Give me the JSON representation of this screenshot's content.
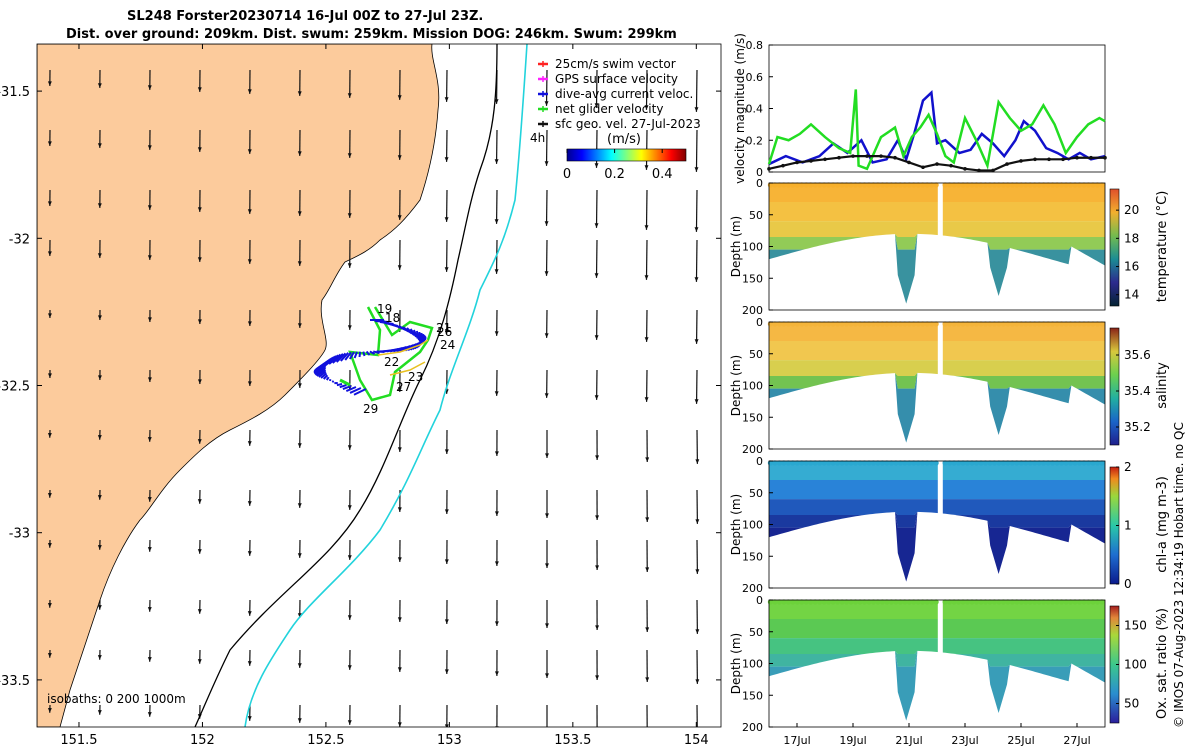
{
  "header": {
    "title_line1": "SL248 Forster20230714 16-Jul 00Z to 27-Jul 23Z.",
    "title_line2": "Dist. over ground: 209km. Dist. swum: 259km. Mission DOG: 246km. Swum: 299km"
  },
  "colors": {
    "land": "#FCCB9C",
    "ocean": "#FFFFFF",
    "isobath_200": "#000000",
    "isobath_1000": "#22D3DC",
    "vel_mag": "#1111CC",
    "net_vel": "#22DD22",
    "sfc_geo": "#111111"
  },
  "map": {
    "lon_ticks": [
      "151.5",
      "152",
      "152.5",
      "153",
      "153.5",
      "154"
    ],
    "lat_ticks": [
      "-31.5",
      "-32",
      "-32.5",
      "-33",
      "-33.5"
    ],
    "lon_range": [
      151.33,
      154.1
    ],
    "lat_range": [
      -33.66,
      -31.34
    ],
    "legend": [
      {
        "label": "25cm/s swim vector",
        "color": "#FF2222"
      },
      {
        "label": "GPS surface velocity",
        "color": "#FF22FF"
      },
      {
        "label": "dive-avg current veloc.",
        "color": "#1111DD"
      },
      {
        "label": "net glider velocity",
        "color": "#22DD22"
      },
      {
        "label": "sfc geo. vel. 27-Jul-2023",
        "color": "#111111"
      }
    ],
    "speed_colorbar": {
      "label": "(m/s)",
      "ticks": [
        "0",
        "0.2",
        "0.4"
      ],
      "range": [
        0,
        0.5
      ]
    },
    "time_label": "4h",
    "isobaths_label": "isobaths: 0   200   1000m",
    "day_labels": [
      "19",
      "18",
      "21",
      "26",
      "24",
      "22",
      "23",
      "27",
      "29"
    ]
  },
  "chart_data": [
    {
      "type": "line",
      "title": "",
      "xlabel": "",
      "ylabel": "velocity magnitude (m/s)",
      "ylim": [
        0,
        0.8
      ],
      "yticks": [
        "0",
        "0.2",
        "0.4",
        "0.6",
        "0.8"
      ],
      "x_range_days": [
        16.0,
        28.0
      ],
      "series": [
        {
          "name": "dive-avg current veloc.",
          "x": [
            16.0,
            16.6,
            17.2,
            17.8,
            18.3,
            18.8,
            19.3,
            19.7,
            20.2,
            20.6,
            20.9,
            21.2,
            21.5,
            21.8,
            22.0,
            22.3,
            22.8,
            23.2,
            23.6,
            24.0,
            24.4,
            24.8,
            25.1,
            25.5,
            25.9,
            26.3,
            26.7,
            27.1,
            27.5,
            28.0
          ],
          "y": [
            0.05,
            0.1,
            0.06,
            0.1,
            0.18,
            0.12,
            0.2,
            0.06,
            0.08,
            0.2,
            0.08,
            0.25,
            0.45,
            0.5,
            0.18,
            0.2,
            0.12,
            0.14,
            0.24,
            0.18,
            0.1,
            0.2,
            0.32,
            0.26,
            0.15,
            0.12,
            0.08,
            0.12,
            0.08,
            0.1
          ]
        },
        {
          "name": "net glider velocity",
          "x": [
            16.0,
            16.3,
            16.7,
            17.1,
            17.5,
            18.0,
            18.5,
            18.9,
            19.1,
            19.2,
            19.5,
            20.0,
            20.5,
            20.8,
            21.1,
            21.4,
            21.7,
            22.0,
            22.3,
            22.6,
            23.0,
            23.4,
            23.8,
            24.2,
            24.6,
            25.0,
            25.4,
            25.8,
            26.2,
            26.6,
            27.0,
            27.4,
            27.8,
            28.0
          ],
          "y": [
            0.05,
            0.22,
            0.2,
            0.24,
            0.3,
            0.22,
            0.15,
            0.12,
            0.52,
            0.04,
            0.02,
            0.22,
            0.28,
            0.1,
            0.22,
            0.28,
            0.36,
            0.24,
            0.1,
            0.06,
            0.34,
            0.2,
            0.04,
            0.44,
            0.34,
            0.26,
            0.3,
            0.42,
            0.3,
            0.12,
            0.22,
            0.3,
            0.34,
            0.32
          ]
        },
        {
          "name": "sfc geo. vel.",
          "x": [
            16.0,
            16.5,
            17.0,
            17.5,
            18.0,
            18.5,
            19.0,
            19.5,
            20.0,
            20.5,
            21.0,
            21.5,
            22.0,
            22.5,
            23.0,
            23.5,
            24.0,
            24.5,
            25.0,
            25.5,
            26.0,
            26.5,
            27.0,
            27.5,
            28.0
          ],
          "y": [
            0.02,
            0.04,
            0.06,
            0.07,
            0.08,
            0.09,
            0.1,
            0.1,
            0.1,
            0.09,
            0.06,
            0.03,
            0.05,
            0.04,
            0.02,
            0.01,
            0.01,
            0.05,
            0.07,
            0.08,
            0.08,
            0.08,
            0.09,
            0.09,
            0.09
          ]
        }
      ]
    },
    {
      "type": "heatmap",
      "variable": "temperature",
      "ylabel": "Depth (m)",
      "colorbar_label": "temperature (°C)",
      "color_range": [
        13.2,
        21.5
      ],
      "colorbar_ticks": [
        "14",
        "16",
        "18",
        "20"
      ],
      "ylim": [
        0,
        200
      ],
      "yticks": [
        "0",
        "50",
        "100",
        "150",
        "200"
      ]
    },
    {
      "type": "heatmap",
      "variable": "salinity",
      "ylabel": "Depth (m)",
      "colorbar_label": "salinity",
      "color_range": [
        35.1,
        35.75
      ],
      "colorbar_ticks": [
        "35.2",
        "35.4",
        "35.6"
      ],
      "ylim": [
        0,
        200
      ],
      "yticks": [
        "0",
        "50",
        "100",
        "150",
        "200"
      ]
    },
    {
      "type": "heatmap",
      "variable": "chl-a",
      "ylabel": "Depth (m)",
      "colorbar_label": "chl-a (mg m-3)",
      "color_range": [
        0,
        2
      ],
      "colorbar_ticks": [
        "0",
        "1",
        "2"
      ],
      "ylim": [
        0,
        200
      ],
      "yticks": [
        "0",
        "50",
        "100",
        "150",
        "200"
      ]
    },
    {
      "type": "heatmap",
      "variable": "oxygen saturation",
      "ylabel": "Depth (m)",
      "colorbar_label": "Ox. sat. ratio (%)",
      "color_range": [
        25,
        175
      ],
      "colorbar_ticks": [
        "50",
        "100",
        "150"
      ],
      "ylim": [
        0,
        200
      ],
      "yticks": [
        "0",
        "50",
        "100",
        "150",
        "200"
      ],
      "xticks": [
        "17Jul",
        "19Jul",
        "21Jul",
        "23Jul",
        "25Jul",
        "27Jul"
      ]
    }
  ],
  "footer": {
    "credit": "© IMOS 07-Aug-2023 12:34:19 Hobart time. no QC"
  }
}
